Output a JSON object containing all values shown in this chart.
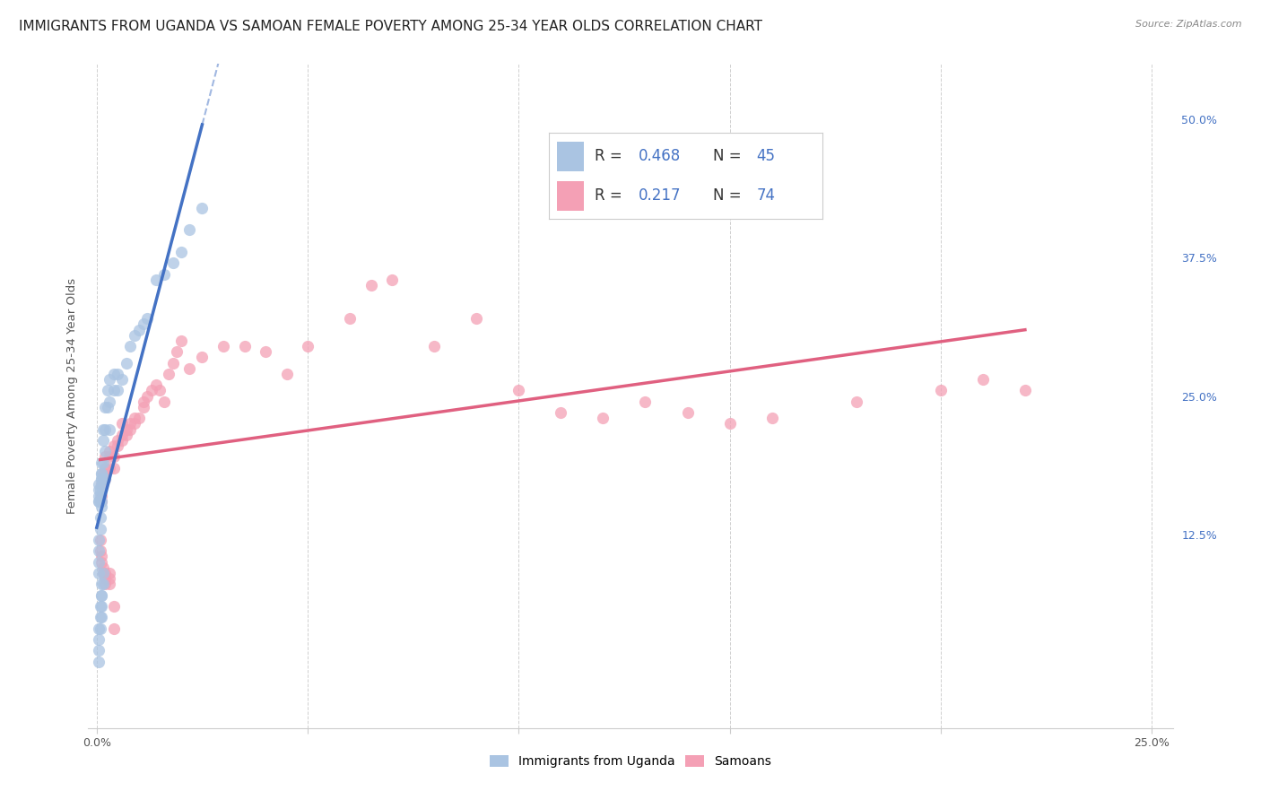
{
  "title": "IMMIGRANTS FROM UGANDA VS SAMOAN FEMALE POVERTY AMONG 25-34 YEAR OLDS CORRELATION CHART",
  "source": "Source: ZipAtlas.com",
  "ylabel": "Female Poverty Among 25-34 Year Olds",
  "xlim": [
    -0.002,
    0.255
  ],
  "ylim": [
    -0.05,
    0.55
  ],
  "xtick_positions": [
    0.0,
    0.05,
    0.1,
    0.15,
    0.2,
    0.25
  ],
  "xticklabels": [
    "0.0%",
    "",
    "",
    "",
    "",
    "25.0%"
  ],
  "ytick_right_values": [
    0.5,
    0.375,
    0.25,
    0.125
  ],
  "ytick_right_labels": [
    "50.0%",
    "37.5%",
    "25.0%",
    "12.5%"
  ],
  "color_uganda": "#aac4e2",
  "color_samoa": "#f4a0b5",
  "color_uganda_line": "#4472c4",
  "color_samoa_line": "#e06080",
  "color_legend_text": "#4472c4",
  "color_grid": "#d0d0d0",
  "background_color": "#ffffff",
  "legend_r1": "0.468",
  "legend_n1": "45",
  "legend_r2": "0.217",
  "legend_n2": "74",
  "uganda_x": [
    0.0005,
    0.0005,
    0.0005,
    0.0005,
    0.0005,
    0.0008,
    0.0008,
    0.0008,
    0.001,
    0.001,
    0.001,
    0.001,
    0.001,
    0.0012,
    0.0012,
    0.0012,
    0.0015,
    0.0015,
    0.0015,
    0.002,
    0.002,
    0.002,
    0.002,
    0.0025,
    0.0025,
    0.003,
    0.003,
    0.003,
    0.004,
    0.004,
    0.005,
    0.005,
    0.006,
    0.007,
    0.008,
    0.009,
    0.01,
    0.011,
    0.012,
    0.014,
    0.016,
    0.018,
    0.02,
    0.022,
    0.025
  ],
  "uganda_y": [
    0.155,
    0.16,
    0.165,
    0.17,
    0.155,
    0.16,
    0.165,
    0.155,
    0.17,
    0.175,
    0.18,
    0.155,
    0.15,
    0.19,
    0.18,
    0.175,
    0.22,
    0.19,
    0.21,
    0.24,
    0.22,
    0.2,
    0.175,
    0.255,
    0.24,
    0.265,
    0.245,
    0.22,
    0.27,
    0.255,
    0.27,
    0.255,
    0.265,
    0.28,
    0.295,
    0.305,
    0.31,
    0.315,
    0.32,
    0.355,
    0.36,
    0.37,
    0.38,
    0.4,
    0.42
  ],
  "uganda_scatter_extra_x": [
    0.0005,
    0.0005,
    0.0005,
    0.001,
    0.001,
    0.0008,
    0.0008,
    0.0015,
    0.0015,
    0.0012,
    0.0012,
    0.0005,
    0.0005,
    0.0008,
    0.0005,
    0.0005,
    0.0012,
    0.0005,
    0.0008,
    0.0008
  ],
  "uganda_scatter_extra_y": [
    0.11,
    0.1,
    0.09,
    0.08,
    0.07,
    0.06,
    0.05,
    0.09,
    0.08,
    0.07,
    0.06,
    0.04,
    0.03,
    0.04,
    0.02,
    0.01,
    0.05,
    0.12,
    0.13,
    0.14
  ],
  "samoa_x": [
    0.001,
    0.001,
    0.001,
    0.0015,
    0.0015,
    0.002,
    0.002,
    0.002,
    0.003,
    0.003,
    0.003,
    0.004,
    0.004,
    0.004,
    0.005,
    0.005,
    0.006,
    0.006,
    0.006,
    0.007,
    0.007,
    0.008,
    0.008,
    0.009,
    0.009,
    0.01,
    0.011,
    0.011,
    0.012,
    0.013,
    0.014,
    0.015,
    0.016,
    0.017,
    0.018,
    0.019,
    0.02,
    0.022,
    0.025,
    0.03,
    0.035,
    0.04,
    0.045,
    0.05,
    0.06,
    0.065,
    0.07,
    0.08,
    0.09,
    0.1,
    0.11,
    0.12,
    0.13,
    0.14,
    0.15,
    0.16,
    0.18,
    0.2,
    0.21,
    0.22,
    0.0008,
    0.0008,
    0.001,
    0.001,
    0.0015,
    0.0015,
    0.002,
    0.002,
    0.002,
    0.003,
    0.003,
    0.003,
    0.004,
    0.004
  ],
  "samoa_y": [
    0.16,
    0.17,
    0.155,
    0.18,
    0.175,
    0.195,
    0.185,
    0.175,
    0.2,
    0.195,
    0.185,
    0.195,
    0.205,
    0.185,
    0.21,
    0.205,
    0.225,
    0.215,
    0.21,
    0.22,
    0.215,
    0.225,
    0.22,
    0.23,
    0.225,
    0.23,
    0.245,
    0.24,
    0.25,
    0.255,
    0.26,
    0.255,
    0.245,
    0.27,
    0.28,
    0.29,
    0.3,
    0.275,
    0.285,
    0.295,
    0.295,
    0.29,
    0.27,
    0.295,
    0.32,
    0.35,
    0.355,
    0.295,
    0.32,
    0.255,
    0.235,
    0.23,
    0.245,
    0.235,
    0.225,
    0.23,
    0.245,
    0.255,
    0.265,
    0.255,
    0.12,
    0.11,
    0.105,
    0.1,
    0.09,
    0.095,
    0.09,
    0.085,
    0.08,
    0.09,
    0.085,
    0.08,
    0.06,
    0.04
  ],
  "title_fontsize": 11,
  "source_fontsize": 8,
  "axis_label_fontsize": 9.5,
  "tick_fontsize": 9,
  "legend_fontsize": 12
}
